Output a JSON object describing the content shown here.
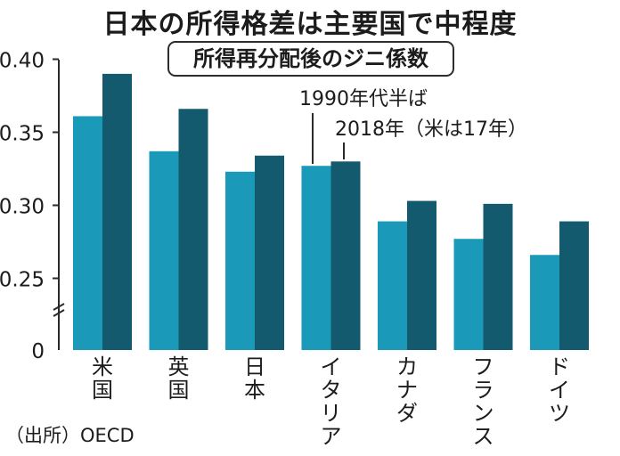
{
  "chart_data": {
    "type": "bar",
    "title": "日本の所得格差は主要国で中程度",
    "subtitle": "所得再分配後のジニ係数",
    "categories": [
      "米国",
      "英国",
      "日本",
      "イタリア",
      "カナダ",
      "フランス",
      "ドイツ"
    ],
    "series": [
      {
        "name": "1990年代半ば",
        "color": "#1a9ab8",
        "values": [
          0.361,
          0.337,
          0.323,
          0.327,
          0.289,
          0.277,
          0.266
        ]
      },
      {
        "name": "2018年（米は17年）",
        "color": "#145a6e",
        "values": [
          0.39,
          0.366,
          0.334,
          0.33,
          0.303,
          0.301,
          0.289
        ]
      }
    ],
    "yticks": [
      "0.40",
      "0.35",
      "0.30",
      "0.25",
      "0"
    ],
    "ylim": [
      0.22,
      0.4
    ],
    "y_axis_break": true,
    "source": "（出所）OECD"
  }
}
